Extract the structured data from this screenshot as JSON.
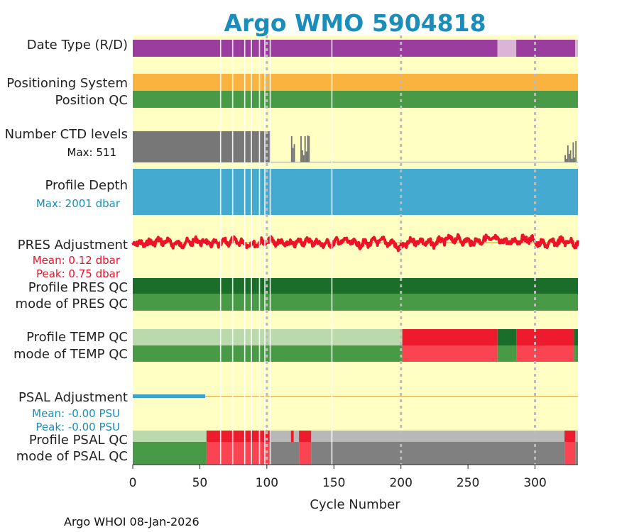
{
  "chart_data": {
    "type": "heatmap",
    "title": "Argo WMO 5904818",
    "xlabel": "Cycle Number",
    "xlim": [
      0,
      332
    ],
    "xticks": [
      "0",
      "50",
      "100",
      "150",
      "200",
      "250",
      "300"
    ],
    "xtick_values": [
      0,
      50,
      100,
      150,
      200,
      250,
      300
    ],
    "vertical_gridlines_at": [
      100,
      200,
      300
    ],
    "footer": "Argo WHOI 08-Jan-2026",
    "missing_cycles": [
      65,
      66,
      74,
      75,
      83,
      84,
      88,
      89,
      94,
      95,
      98,
      99,
      102,
      103,
      148,
      149
    ],
    "tracks": {
      "date_type": {
        "label": "Date Type (R/D)",
        "segments": [
          {
            "from": 0,
            "to": 272,
            "value": "D"
          },
          {
            "from": 272,
            "to": 286,
            "value": "R"
          },
          {
            "from": 286,
            "to": 330,
            "value": "D"
          },
          {
            "from": 330,
            "to": 332,
            "value": "R"
          }
        ]
      },
      "positioning_system": {
        "label": "Positioning System",
        "value": "GPS",
        "from": 0,
        "to": 332
      },
      "position_qc": {
        "label": "Position QC",
        "value": "1",
        "from": 0,
        "to": 332
      },
      "ctd_levels": {
        "label": "Number CTD levels",
        "max_text": "Max: 511",
        "max": 511,
        "values": [
          {
            "from": 0,
            "to": 103,
            "value": 511
          },
          {
            "from": 103,
            "to": 118,
            "value": 8
          },
          {
            "from": 118,
            "to": 119,
            "value": 430
          },
          {
            "from": 119,
            "to": 120,
            "value": 240
          },
          {
            "from": 120,
            "to": 121,
            "value": 300
          },
          {
            "from": 121,
            "to": 125,
            "value": 8
          },
          {
            "from": 125,
            "to": 126,
            "value": 430
          },
          {
            "from": 126,
            "to": 127,
            "value": 200
          },
          {
            "from": 127,
            "to": 128,
            "value": 120
          },
          {
            "from": 128,
            "to": 129,
            "value": 430
          },
          {
            "from": 129,
            "to": 130,
            "value": 180
          },
          {
            "from": 130,
            "to": 131,
            "value": 440
          },
          {
            "from": 131,
            "to": 132,
            "value": 430
          },
          {
            "from": 132,
            "to": 322,
            "value": 8
          },
          {
            "from": 322,
            "to": 323,
            "value": 120
          },
          {
            "from": 323,
            "to": 324,
            "value": 60
          },
          {
            "from": 324,
            "to": 325,
            "value": 280
          },
          {
            "from": 325,
            "to": 326,
            "value": 140
          },
          {
            "from": 326,
            "to": 327,
            "value": 200
          },
          {
            "from": 327,
            "to": 328,
            "value": 60
          },
          {
            "from": 328,
            "to": 329,
            "value": 330
          },
          {
            "from": 329,
            "to": 330,
            "value": 80
          },
          {
            "from": 330,
            "to": 331,
            "value": 350
          },
          {
            "from": 331,
            "to": 332,
            "value": 8
          }
        ]
      },
      "profile_depth": {
        "label": "Profile Depth",
        "max_text": "Max: 2001 dbar",
        "max": 2001,
        "from": 0,
        "to": 332
      },
      "pres_adjustment": {
        "label": "PRES Adjustment",
        "mean_text": "Mean: 0.12 dbar",
        "peak_text": "Peak: 0.75 dbar"
      },
      "profile_pres_qc": {
        "label": "Profile PRES QC",
        "value": "A",
        "from": 0,
        "to": 332
      },
      "mode_pres_qc": {
        "label": "mode of PRES QC",
        "value": "1",
        "from": 0,
        "to": 332
      },
      "profile_temp_qc": {
        "label": "Profile TEMP QC",
        "segments": [
          {
            "from": 0,
            "to": 201,
            "value": "A"
          },
          {
            "from": 201,
            "to": 272,
            "value": "F"
          },
          {
            "from": 272,
            "to": 286,
            "value": "A"
          },
          {
            "from": 286,
            "to": 329,
            "value": "F"
          },
          {
            "from": 329,
            "to": 332,
            "value": "A"
          }
        ]
      },
      "mode_temp_qc": {
        "label": "mode of TEMP QC",
        "segments": [
          {
            "from": 0,
            "to": 201,
            "value": "1"
          },
          {
            "from": 201,
            "to": 272,
            "value": "4"
          },
          {
            "from": 272,
            "to": 286,
            "value": "1"
          },
          {
            "from": 286,
            "to": 329,
            "value": "4"
          },
          {
            "from": 329,
            "to": 332,
            "value": "1"
          }
        ]
      },
      "psal_adjustment": {
        "label": "PSAL Adjustment",
        "mean_text": "Mean: -0.00 PSU",
        "peak_text": "Peak: -0.00 PSU",
        "adjusted_cycles": [
          0,
          54
        ]
      },
      "profile_psal_qc": {
        "label": "Profile PSAL QC",
        "segments": [
          {
            "from": 0,
            "to": 55,
            "value": "A"
          },
          {
            "from": 55,
            "to": 103,
            "value": "F"
          },
          {
            "from": 118,
            "to": 120,
            "value": "F"
          },
          {
            "from": 124,
            "to": 133,
            "value": "F"
          },
          {
            "from": 322,
            "to": 330,
            "value": "F"
          }
        ]
      },
      "mode_psal_qc": {
        "label": "mode of PSAL QC",
        "segments": [
          {
            "from": 0,
            "to": 55,
            "value": "1"
          },
          {
            "from": 55,
            "to": 103,
            "value": "4"
          },
          {
            "from": 103,
            "to": 124,
            "value": "3"
          },
          {
            "from": 124,
            "to": 133,
            "value": "4"
          },
          {
            "from": 133,
            "to": 322,
            "value": "3"
          },
          {
            "from": 322,
            "to": 330,
            "value": "4"
          },
          {
            "from": 330,
            "to": 332,
            "value": "3"
          }
        ]
      }
    }
  },
  "colors": {
    "background": "#ffffc4",
    "title": "#1a8dbb",
    "date_D": "#9a3d9e",
    "date_R": "#dcb4d8",
    "gps": "#fbb340",
    "qc_good": "#489a47",
    "qc_a_dark": "#1b6e2a",
    "qc_a_light": "#bad9ad",
    "qc_bad_red": "#ee1b2e",
    "qc_bad_light_red": "#fa4452",
    "qc_gray": "#808080",
    "qc_light_gray": "#b8b8b8",
    "ctd_gray": "#777777",
    "depth_blue": "#44aad0",
    "pres_red": "#ee1228",
    "adj_line": "#f2b24c",
    "psal_blue": "#3aa3cf",
    "grid": "#bbbbbb"
  }
}
